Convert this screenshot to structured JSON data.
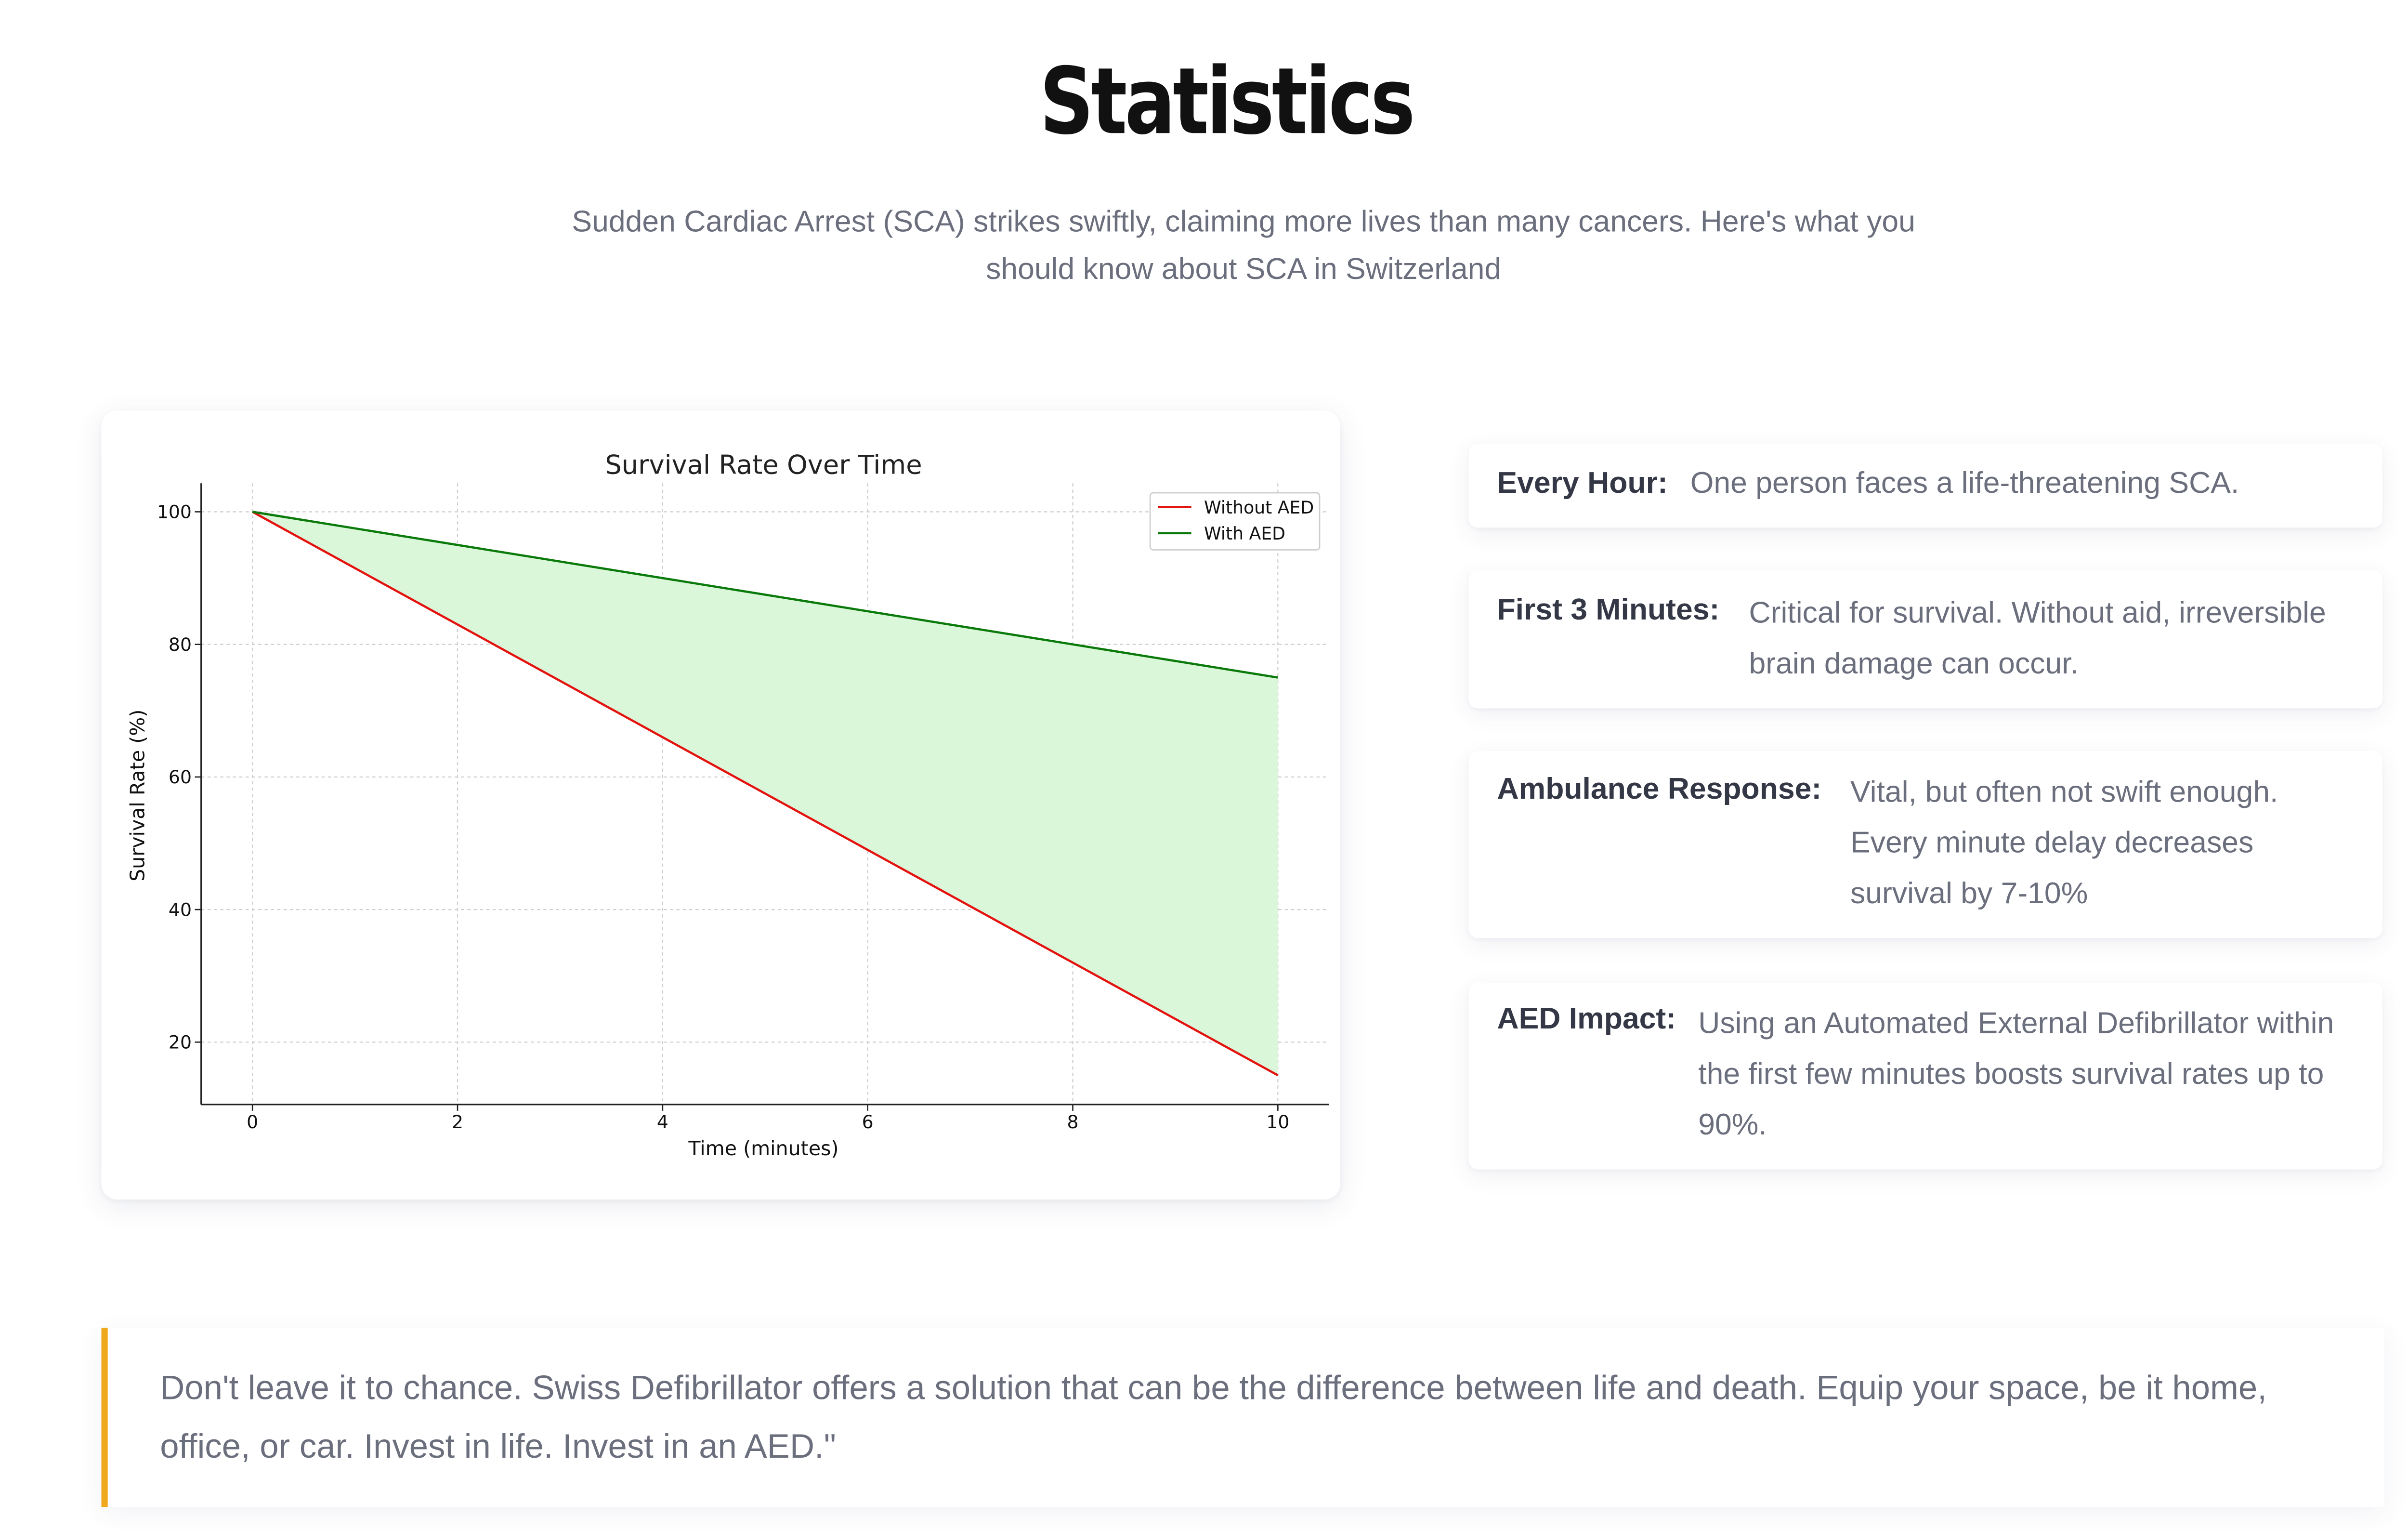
{
  "header": {
    "title": "Statistics",
    "subtitle": "Sudden Cardiac Arrest (SCA) strikes swiftly, claiming more lives than many cancers. Here's what you should know about SCA in Switzerland"
  },
  "chart_data": {
    "type": "line",
    "title": "Survival Rate Over Time",
    "xlabel": "Time (minutes)",
    "ylabel": "Survival Rate (%)",
    "xlim": [
      -0.5,
      10.5
    ],
    "ylim": [
      10.6,
      104.3
    ],
    "x_ticks": [
      0,
      2,
      4,
      6,
      8,
      10
    ],
    "y_ticks": [
      20,
      40,
      60,
      80,
      100
    ],
    "grid": true,
    "legend_position": "top-right",
    "fill_between": {
      "series": [
        "Without AED",
        "With AED"
      ],
      "color": "#dbf7da"
    },
    "series": [
      {
        "name": "Without AED",
        "color": "#e3140f",
        "x": [
          0,
          10
        ],
        "y": [
          100,
          15
        ]
      },
      {
        "name": "With AED",
        "color": "#0a7a0a",
        "x": [
          0,
          10
        ],
        "y": [
          100,
          75
        ]
      }
    ]
  },
  "stats": [
    {
      "label": "Every Hour:",
      "text": "One person faces a life-threatening SCA."
    },
    {
      "label": "First 3 Minutes:",
      "text": "Critical for survival. Without aid, irreversible brain damage can occur."
    },
    {
      "label": "Ambulance Response:",
      "text": "Vital, but often not swift enough. Every minute delay decreases survival by 7-10%"
    },
    {
      "label": "AED Impact:",
      "text": "Using an Automated External Defibrillator within the first few minutes boosts survival rates up to 90%."
    }
  ],
  "quote": {
    "text": "Don't leave it to chance. Swiss Defibrillator offers a solution that can be the difference between life and death. Equip your space, be it home, office, or car. Invest in life. Invest in an AED.\""
  },
  "colors": {
    "accent_border": "#f0a81c",
    "title_text": "#111111",
    "body_text": "#6b6f7d",
    "label_text": "#343846"
  }
}
